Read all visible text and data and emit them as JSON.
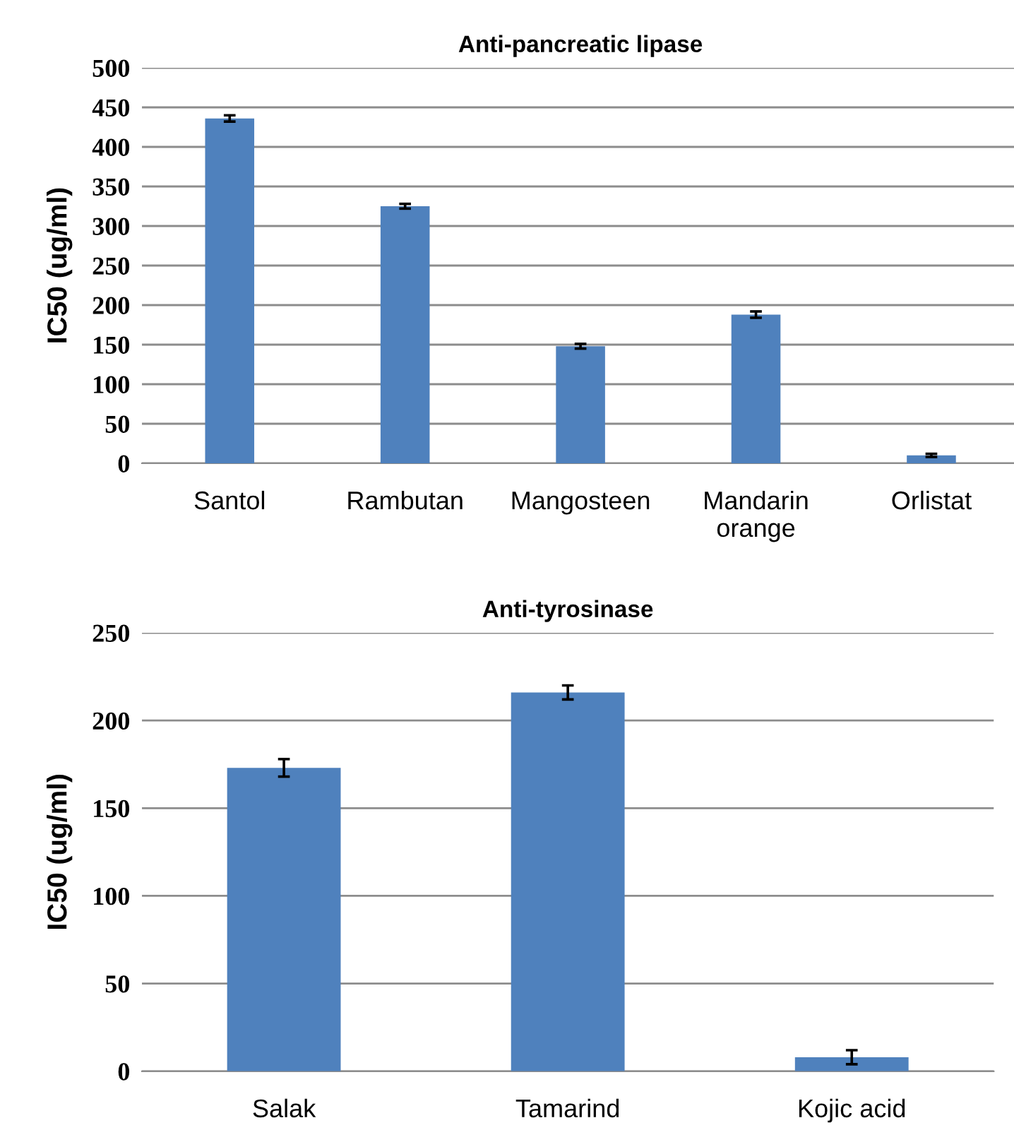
{
  "chart_data": [
    {
      "type": "bar",
      "title": "Anti-pancreatic lipase",
      "ylabel": "IC50 (ug/ml)",
      "categories": [
        "Santol",
        "Rambutan",
        "Mangosteen",
        "Mandarin\norange",
        "Orlistat"
      ],
      "series": [
        {
          "color": "#4f81bd",
          "values": [
            436,
            325,
            148,
            188,
            10
          ],
          "errors": [
            4,
            3,
            3,
            4,
            2
          ]
        }
      ],
      "ylim": [
        0,
        500
      ],
      "yticks": [
        0,
        50,
        100,
        150,
        200,
        250,
        300,
        350,
        400,
        450,
        500
      ],
      "grid": "y"
    },
    {
      "type": "bar",
      "title": "Anti-tyrosinase",
      "ylabel": "IC50 (ug/ml)",
      "categories": [
        "Salak",
        "Tamarind",
        "Kojic acid"
      ],
      "series": [
        {
          "color": "#4f81bd",
          "values": [
            173,
            216,
            8
          ],
          "errors": [
            5,
            4,
            4
          ]
        }
      ],
      "ylim": [
        0,
        250
      ],
      "yticks": [
        0,
        50,
        100,
        150,
        200,
        250
      ],
      "grid": "y"
    }
  ]
}
